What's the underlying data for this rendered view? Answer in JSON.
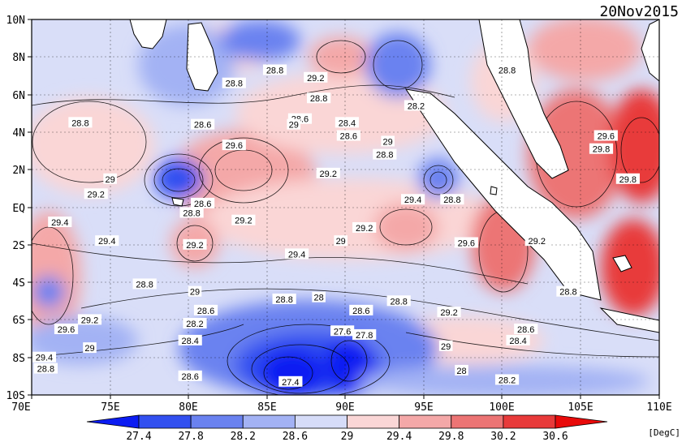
{
  "map": {
    "date": "20Nov2015",
    "units": "[DegC]",
    "lat_labels": [
      "10N",
      "8N",
      "6N",
      "4N",
      "2N",
      "EQ",
      "2S",
      "4S",
      "6S",
      "8S",
      "10S"
    ],
    "lon_labels": [
      "70E",
      "75E",
      "80E",
      "85E",
      "90E",
      "95E",
      "100E",
      "105E",
      "110E"
    ],
    "lon_range": [
      70,
      110
    ],
    "lat_range": [
      -10,
      10
    ],
    "colorbar": {
      "levels": [
        "27.4",
        "27.8",
        "28.2",
        "28.6",
        "29",
        "29.4",
        "29.8",
        "30.2",
        "30.6"
      ],
      "colors": [
        "#0b1cf2",
        "#3250f0",
        "#6a82f0",
        "#a3b2f4",
        "#d6dcf8",
        "#fad6d6",
        "#f4a8a8",
        "#ec7474",
        "#e83a3a",
        "#e80a0a"
      ]
    },
    "contour_labels": [
      {
        "text": "28.8",
        "lon": 73.1,
        "lat": 4.5
      },
      {
        "text": "29",
        "lon": 75.0,
        "lat": 1.5
      },
      {
        "text": "29.2",
        "lon": 74.1,
        "lat": 0.7
      },
      {
        "text": "29.4",
        "lon": 71.8,
        "lat": -0.8
      },
      {
        "text": "29.4",
        "lon": 74.8,
        "lat": -1.8
      },
      {
        "text": "29.6",
        "lon": 72.2,
        "lat": -6.5
      },
      {
        "text": "29.2",
        "lon": 73.7,
        "lat": -6.0
      },
      {
        "text": "29",
        "lon": 73.7,
        "lat": -7.5
      },
      {
        "text": "29.4",
        "lon": 70.8,
        "lat": -8.0
      },
      {
        "text": "28.8",
        "lon": 70.9,
        "lat": -8.6
      },
      {
        "text": "28.8",
        "lon": 82.9,
        "lat": 6.6
      },
      {
        "text": "28.8",
        "lon": 85.5,
        "lat": 7.3
      },
      {
        "text": "29.2",
        "lon": 88.1,
        "lat": 6.9
      },
      {
        "text": "28.8",
        "lon": 88.3,
        "lat": 5.8
      },
      {
        "text": "28.6",
        "lon": 80.9,
        "lat": 4.4
      },
      {
        "text": "29.6",
        "lon": 82.9,
        "lat": 3.3
      },
      {
        "text": "28.6",
        "lon": 87.1,
        "lat": 4.7
      },
      {
        "text": "29",
        "lon": 86.7,
        "lat": 4.4
      },
      {
        "text": "28.4",
        "lon": 90.1,
        "lat": 4.5
      },
      {
        "text": "28.6",
        "lon": 90.2,
        "lat": 3.8
      },
      {
        "text": "29",
        "lon": 92.7,
        "lat": 3.5
      },
      {
        "text": "28.8",
        "lon": 92.5,
        "lat": 2.8
      },
      {
        "text": "28.2",
        "lon": 94.5,
        "lat": 5.4
      },
      {
        "text": "29.2",
        "lon": 88.9,
        "lat": 1.8
      },
      {
        "text": "28.6",
        "lon": 80.9,
        "lat": 0.2
      },
      {
        "text": "28.8",
        "lon": 80.2,
        "lat": -0.3
      },
      {
        "text": "29.2",
        "lon": 83.5,
        "lat": -0.7
      },
      {
        "text": "29.4",
        "lon": 94.3,
        "lat": 0.4
      },
      {
        "text": "28.8",
        "lon": 96.8,
        "lat": 0.4
      },
      {
        "text": "29.2",
        "lon": 91.2,
        "lat": -1.1
      },
      {
        "text": "29",
        "lon": 89.7,
        "lat": -1.8
      },
      {
        "text": "29.6",
        "lon": 97.7,
        "lat": -1.9
      },
      {
        "text": "29.2",
        "lon": 102.2,
        "lat": -1.8
      },
      {
        "text": "29.2",
        "lon": 80.4,
        "lat": -2.0
      },
      {
        "text": "29.4",
        "lon": 86.9,
        "lat": -2.5
      },
      {
        "text": "28.8",
        "lon": 77.2,
        "lat": -4.1
      },
      {
        "text": "29",
        "lon": 80.4,
        "lat": -4.5
      },
      {
        "text": "28.8",
        "lon": 86.1,
        "lat": -4.9
      },
      {
        "text": "28",
        "lon": 88.3,
        "lat": -4.8
      },
      {
        "text": "28.6",
        "lon": 81.1,
        "lat": -5.5
      },
      {
        "text": "28.2",
        "lon": 80.4,
        "lat": -6.2
      },
      {
        "text": "28.6",
        "lon": 91.0,
        "lat": -5.5
      },
      {
        "text": "28.8",
        "lon": 93.4,
        "lat": -5.0
      },
      {
        "text": "29.2",
        "lon": 96.6,
        "lat": -5.6
      },
      {
        "text": "28.8",
        "lon": 104.2,
        "lat": -4.5
      },
      {
        "text": "28.4",
        "lon": 80.1,
        "lat": -7.1
      },
      {
        "text": "27.6",
        "lon": 89.8,
        "lat": -6.6
      },
      {
        "text": "27.8",
        "lon": 91.2,
        "lat": -6.8
      },
      {
        "text": "28.6",
        "lon": 101.5,
        "lat": -6.5
      },
      {
        "text": "28.4",
        "lon": 101.0,
        "lat": -7.1
      },
      {
        "text": "29",
        "lon": 96.4,
        "lat": -7.4
      },
      {
        "text": "28.6",
        "lon": 80.1,
        "lat": -9.0
      },
      {
        "text": "27.4",
        "lon": 86.5,
        "lat": -9.3
      },
      {
        "text": "28",
        "lon": 97.4,
        "lat": -8.7
      },
      {
        "text": "28.2",
        "lon": 100.3,
        "lat": -9.2
      },
      {
        "text": "28.8",
        "lon": 100.3,
        "lat": 7.3
      },
      {
        "text": "29.6",
        "lon": 106.6,
        "lat": 3.8
      },
      {
        "text": "29.8",
        "lon": 106.3,
        "lat": 3.1
      },
      {
        "text": "29.8",
        "lon": 108.0,
        "lat": 1.5
      }
    ]
  }
}
